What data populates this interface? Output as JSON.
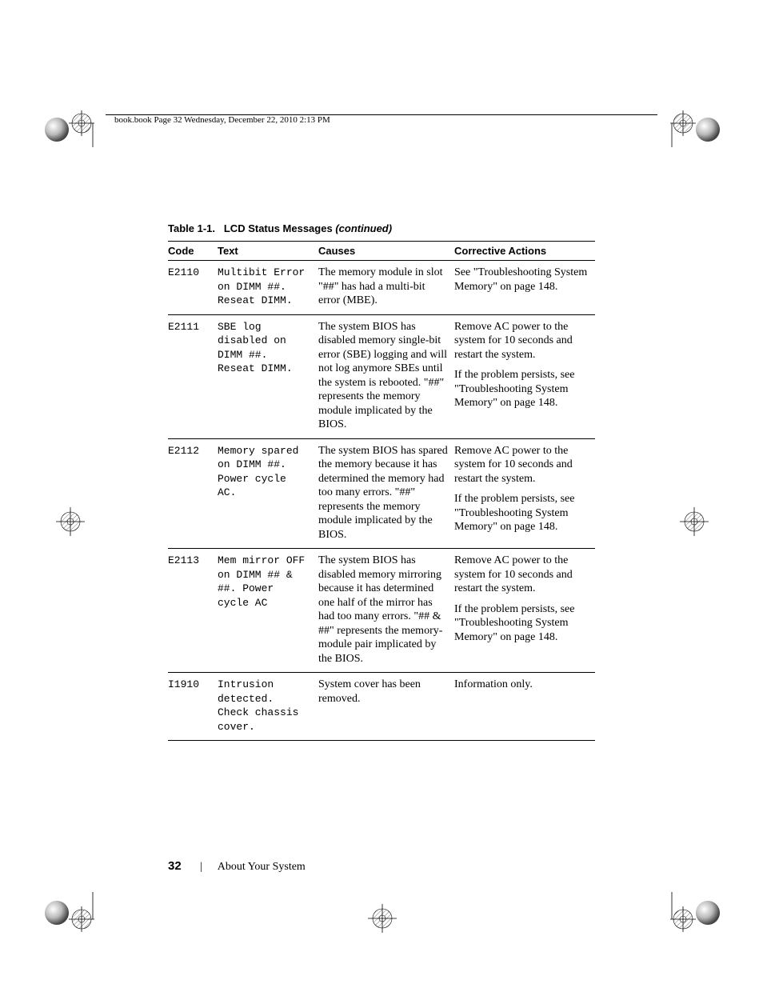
{
  "header": "book.book  Page 32  Wednesday, December 22, 2010  2:13 PM",
  "table": {
    "caption_prefix": "Table 1-1.",
    "caption_title": "LCD Status Messages",
    "caption_suffix": "(continued)",
    "columns": [
      "Code",
      "Text",
      "Causes",
      "Corrective Actions"
    ],
    "rows": [
      {
        "code": "E2110",
        "text": "Multibit Error\non DIMM ##.\nReseat DIMM.",
        "causes": "The memory module in slot \"##\" has had a multi-bit error (MBE).",
        "action1": "See \"Troubleshooting System Memory\" on page 148."
      },
      {
        "code": "E2111",
        "text": "SBE log\ndisabled on\nDIMM ##.\nReseat DIMM.",
        "causes": "The system BIOS has disabled memory single-bit error (SBE) logging and will not log anymore SBEs until the system is rebooted. \"##\" represents the memory module implicated by the BIOS.",
        "action1": "Remove AC power to the system for 10 seconds and restart the system.",
        "action2": "If the problem persists, see \"Troubleshooting System Memory\" on page 148."
      },
      {
        "code": "E2112",
        "text": "Memory spared\non DIMM ##.\nPower cycle\nAC.",
        "causes": "The system BIOS has spared the memory because it has determined the memory had too many errors. \"##\" represents the memory module implicated by the BIOS.",
        "action1": "Remove AC power to the system for 10 seconds and restart the system.",
        "action2": "If the problem persists, see \"Troubleshooting System Memory\" on page 148."
      },
      {
        "code": "E2113",
        "text": "Mem mirror OFF\non DIMM ## &\n##. Power\ncycle AC",
        "causes": "The system BIOS has disabled memory mirroring because it has determined one half of the mirror has had too many errors. \"## & ##\" represents the memory-module pair implicated by the BIOS.",
        "action1": "Remove AC power to the system for 10 seconds and restart the system.",
        "action2": "If the problem persists, see \"Troubleshooting System Memory\" on page 148."
      },
      {
        "code": "I1910",
        "text": "Intrusion\ndetected.\nCheck chassis\ncover.",
        "causes": "System cover has been removed.",
        "action1": "Information only."
      }
    ]
  },
  "footer": {
    "page_number": "32",
    "section": "About Your System"
  }
}
